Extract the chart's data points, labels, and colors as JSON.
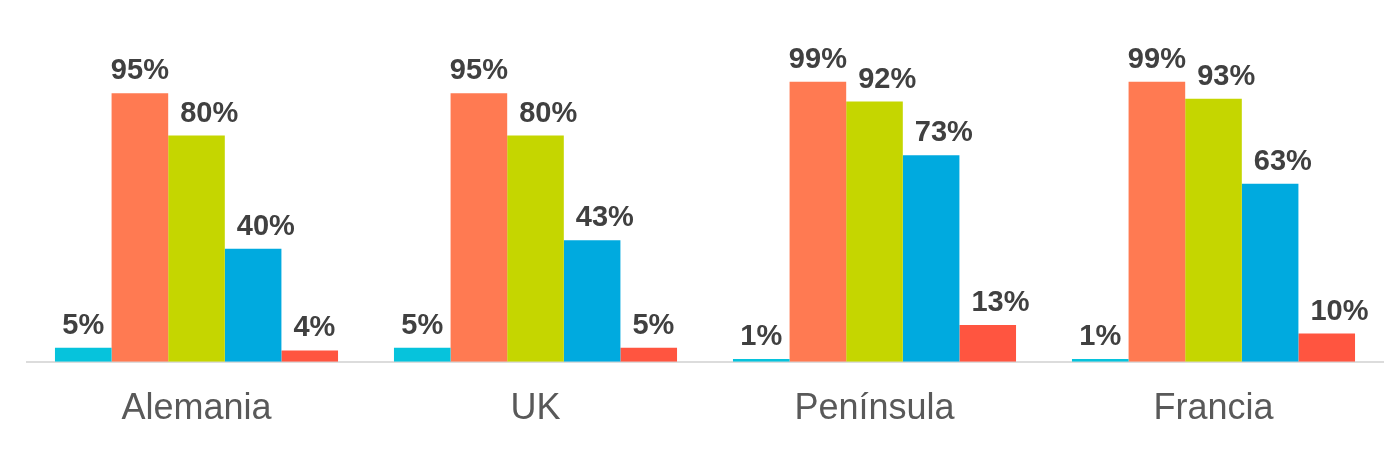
{
  "chart_data": {
    "type": "bar",
    "categories": [
      "Alemania",
      "UK",
      "Península",
      "Francia"
    ],
    "series": [
      {
        "color": "#06c3dc",
        "values": [
          5,
          5,
          1,
          1
        ],
        "value_labels": [
          "5%",
          "5%",
          "1%",
          "1%"
        ]
      },
      {
        "color": "#ff7a52",
        "values": [
          95,
          95,
          99,
          99
        ],
        "value_labels": [
          "95%",
          "95%",
          "99%",
          "99%"
        ]
      },
      {
        "color": "#c5d600",
        "values": [
          80,
          80,
          92,
          93
        ],
        "value_labels": [
          "80%",
          "80%",
          "92%",
          "93%"
        ]
      },
      {
        "color": "#00aadf",
        "values": [
          40,
          43,
          73,
          63
        ],
        "value_labels": [
          "40%",
          "43%",
          "73%",
          "63%"
        ]
      },
      {
        "color": "#ff5540",
        "values": [
          4,
          5,
          13,
          10
        ],
        "value_labels": [
          "4%",
          "5%",
          "13%",
          "10%"
        ]
      }
    ],
    "grid": false,
    "legend": false,
    "tick_labels": "x"
  }
}
